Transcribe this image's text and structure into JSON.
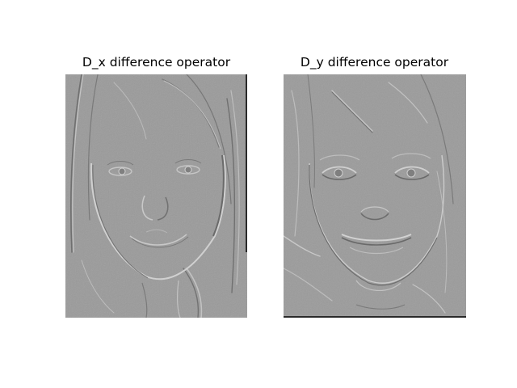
{
  "panels": [
    {
      "title": "D_x difference operator",
      "image": "face-x-gradient-emboss",
      "background_gray": "#9a9a9a"
    },
    {
      "title": "D_y difference operator",
      "image": "face-y-gradient-emboss",
      "background_gray": "#9b9b9b"
    }
  ]
}
